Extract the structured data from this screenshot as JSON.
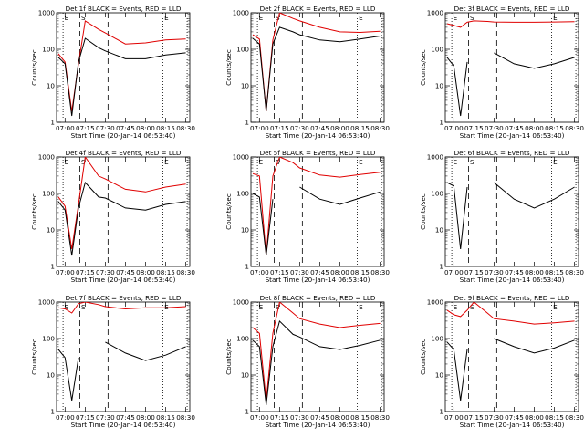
{
  "figure": {
    "panel_type": "line",
    "y_scale": "log",
    "ylim": [
      1,
      1000
    ],
    "y_ticks": [
      1,
      10,
      100,
      1000
    ],
    "x_ticks": [
      "07:00",
      "07:15",
      "07:30",
      "07:45",
      "08:00",
      "08:15",
      "08:30"
    ],
    "xlabel": "Start Time (20-Jan-14 06:53:40)",
    "ylabel": "Counts/sec",
    "series_colors": {
      "events": "#000000",
      "lld": "#e00000"
    },
    "marker_labels": [
      "E",
      "S",
      "E"
    ]
  },
  "chart_data": [
    {
      "type": "line",
      "title": "Det 1f BLACK = Events, RED = LLD",
      "x": [
        "06:55",
        "07:00",
        "07:05",
        "07:10",
        "07:15",
        "07:25",
        "07:30",
        "07:45",
        "08:00",
        "08:15",
        "08:30"
      ],
      "series": [
        {
          "values": [
            75,
            45,
            2,
            40,
            600,
            350,
            280,
            140,
            150,
            180,
            190
          ]
        },
        {
          "values": [
            60,
            40,
            1.5,
            45,
            200,
            110,
            90,
            55,
            55,
            70,
            80
          ]
        }
      ]
    },
    {
      "type": "line",
      "title": "Det 2f BLACK = Events, RED = LLD",
      "x": [
        "06:55",
        "07:00",
        "07:05",
        "07:10",
        "07:15",
        "07:25",
        "07:30",
        "07:45",
        "08:00",
        "08:15",
        "08:30"
      ],
      "series": [
        {
          "values": [
            250,
            190,
            2,
            180,
            1000,
            700,
            600,
            400,
            300,
            290,
            310
          ]
        },
        {
          "values": [
            200,
            140,
            2,
            140,
            400,
            300,
            250,
            180,
            160,
            190,
            230
          ]
        }
      ]
    },
    {
      "type": "line",
      "title": "Det 3f BLACK = Events, RED = LLD",
      "x": [
        "06:55",
        "07:00",
        "07:05",
        "07:10",
        "07:15",
        "07:25",
        "07:30",
        "07:45",
        "08:00",
        "08:15",
        "08:30"
      ],
      "series": [
        {
          "values": [
            500,
            450,
            400,
            550,
            600,
            580,
            560,
            550,
            550,
            560,
            570
          ]
        },
        {
          "values": [
            60,
            35,
            1.5,
            45,
            null,
            null,
            80,
            40,
            30,
            40,
            60
          ]
        }
      ]
    },
    {
      "type": "line",
      "title": "Det 4f BLACK = Events, RED = LLD",
      "x": [
        "06:55",
        "07:00",
        "07:05",
        "07:10",
        "07:15",
        "07:25",
        "07:30",
        "07:45",
        "08:00",
        "08:15",
        "08:30"
      ],
      "series": [
        {
          "values": [
            80,
            45,
            3,
            50,
            1000,
            300,
            250,
            130,
            110,
            150,
            180
          ]
        },
        {
          "values": [
            60,
            35,
            2,
            40,
            200,
            80,
            75,
            40,
            35,
            50,
            60
          ]
        }
      ]
    },
    {
      "type": "line",
      "title": "Det 5f BLACK = Events, RED = LLD",
      "x": [
        "06:55",
        "07:00",
        "07:05",
        "07:10",
        "07:15",
        "07:25",
        "07:30",
        "07:45",
        "08:00",
        "08:15",
        "08:30"
      ],
      "series": [
        {
          "values": [
            350,
            300,
            2,
            300,
            1000,
            700,
            500,
            320,
            280,
            330,
            380
          ]
        },
        {
          "values": [
            100,
            80,
            2,
            70,
            null,
            null,
            150,
            70,
            50,
            75,
            110
          ]
        }
      ]
    },
    {
      "type": "line",
      "title": "Det 6f BLACK = Events, RED = LLD",
      "x": [
        "06:55",
        "07:00",
        "07:05",
        "07:10",
        "07:15",
        "07:25",
        "07:30",
        "07:45",
        "08:00",
        "08:15",
        "08:30"
      ],
      "series": [
        {
          "values": [
            null,
            null,
            null,
            null,
            null,
            null,
            null,
            null,
            null,
            null,
            null
          ]
        },
        {
          "values": [
            200,
            160,
            3,
            150,
            null,
            null,
            200,
            70,
            40,
            70,
            150
          ]
        }
      ]
    },
    {
      "type": "line",
      "title": "Det 7f BLACK = Events, RED = LLD",
      "x": [
        "06:55",
        "07:00",
        "07:05",
        "07:10",
        "07:15",
        "07:25",
        "07:30",
        "07:45",
        "08:00",
        "08:15",
        "08:30"
      ],
      "series": [
        {
          "values": [
            700,
            650,
            500,
            900,
            1000,
            850,
            750,
            650,
            700,
            700,
            750
          ]
        },
        {
          "values": [
            50,
            30,
            2,
            30,
            null,
            null,
            80,
            40,
            25,
            35,
            60
          ]
        }
      ]
    },
    {
      "type": "line",
      "title": "Det 8f BLACK = Events, RED = LLD",
      "x": [
        "06:55",
        "07:00",
        "07:05",
        "07:10",
        "07:15",
        "07:25",
        "07:30",
        "07:45",
        "08:00",
        "08:15",
        "08:30"
      ],
      "series": [
        {
          "values": [
            200,
            140,
            2,
            140,
            1000,
            500,
            350,
            250,
            200,
            230,
            260
          ]
        },
        {
          "values": [
            90,
            60,
            1.5,
            60,
            300,
            130,
            110,
            60,
            50,
            65,
            90
          ]
        }
      ]
    },
    {
      "type": "line",
      "title": "Det 9f BLACK = Events, RED = LLD",
      "x": [
        "06:55",
        "07:00",
        "07:05",
        "07:10",
        "07:15",
        "07:25",
        "07:30",
        "07:45",
        "08:00",
        "08:15",
        "08:30"
      ],
      "series": [
        {
          "values": [
            600,
            450,
            400,
            600,
            1000,
            500,
            350,
            300,
            250,
            270,
            300
          ]
        },
        {
          "values": [
            80,
            50,
            2,
            50,
            null,
            null,
            100,
            60,
            40,
            55,
            90
          ]
        }
      ]
    }
  ]
}
